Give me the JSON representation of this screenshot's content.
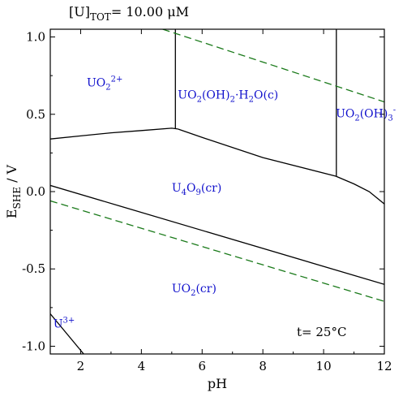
{
  "header": {
    "concentration_label": "[U]",
    "concentration_sub": "TOT",
    "concentration_value": "=   10.00 μM"
  },
  "temperature": "t= 25°C",
  "chart_data": {
    "type": "line",
    "xlabel": "pH",
    "ylabel_main": "E",
    "ylabel_sub": "SHE",
    "ylabel_unit": " / V",
    "xlim": [
      1,
      12
    ],
    "ylim": [
      -1.05,
      1.05
    ],
    "x_ticks": [
      2,
      4,
      6,
      8,
      10,
      12
    ],
    "y_ticks": [
      1.0,
      0.5,
      0.0,
      -0.5,
      -1.0
    ],
    "x_tick_labels": [
      "2",
      "4",
      "6",
      "8",
      "10",
      "12"
    ],
    "y_tick_labels": [
      "1.0",
      "0.5",
      "0.0",
      "-0.5",
      "-1.0"
    ],
    "boundaries": [
      {
        "style": "solid",
        "color": "#000000",
        "x": [
          1,
          2,
          3,
          4,
          5,
          5.2
        ],
        "y": [
          0.34,
          0.36,
          0.38,
          0.395,
          0.41,
          0.405
        ]
      },
      {
        "style": "solid",
        "color": "#000000",
        "x": [
          5.2,
          6,
          8,
          10.4
        ],
        "y": [
          0.405,
          0.35,
          0.22,
          0.1
        ]
      },
      {
        "style": "solid",
        "color": "#000000",
        "x": [
          10.4,
          11,
          11.5,
          12
        ],
        "y": [
          0.1,
          0.05,
          0.0,
          -0.08
        ]
      },
      {
        "style": "solid",
        "color": "#000000",
        "x": [
          5.12,
          5.12
        ],
        "y": [
          1.05,
          0.405
        ]
      },
      {
        "style": "solid",
        "color": "#000000",
        "x": [
          10.42,
          10.42
        ],
        "y": [
          1.05,
          0.1
        ]
      },
      {
        "style": "solid",
        "color": "#000000",
        "x": [
          1,
          12
        ],
        "y": [
          0.04,
          -0.6
        ]
      },
      {
        "style": "solid",
        "color": "#000000",
        "x": [
          1,
          2.1
        ],
        "y": [
          -0.79,
          -1.05
        ]
      }
    ],
    "water_lines": [
      {
        "style": "dashed",
        "color": "#1a7a1a",
        "x": [
          4.7,
          12
        ],
        "y": [
          1.05,
          0.58
        ]
      },
      {
        "style": "dashed",
        "color": "#1a7a1a",
        "x": [
          1,
          12
        ],
        "y": [
          -0.06,
          -0.71
        ]
      }
    ],
    "regions": [
      {
        "base": "UO",
        "sub": "2",
        "sup": "2+",
        "x": 2.2,
        "y": 0.68
      },
      {
        "base": "UO",
        "sub": "2",
        "mid": "(OH)",
        "sub2": "2",
        "tail": "·H",
        "sub3": "2",
        "end": "O(c)",
        "x": 5.2,
        "y": 0.6
      },
      {
        "base": "UO",
        "sub": "2",
        "mid": "(OH)",
        "sub2": "3",
        "sup": "-",
        "x": 10.4,
        "y": 0.48
      },
      {
        "base": "U",
        "sub": "4",
        "mid": "O",
        "sub2": "9",
        "end": "(cr)",
        "x": 5.0,
        "y": 0.0
      },
      {
        "base": "UO",
        "sub": "2",
        "end": "(cr)",
        "x": 5.0,
        "y": -0.65
      },
      {
        "base": "U",
        "sup": "3+",
        "x": 1.1,
        "y": -0.88
      }
    ]
  }
}
